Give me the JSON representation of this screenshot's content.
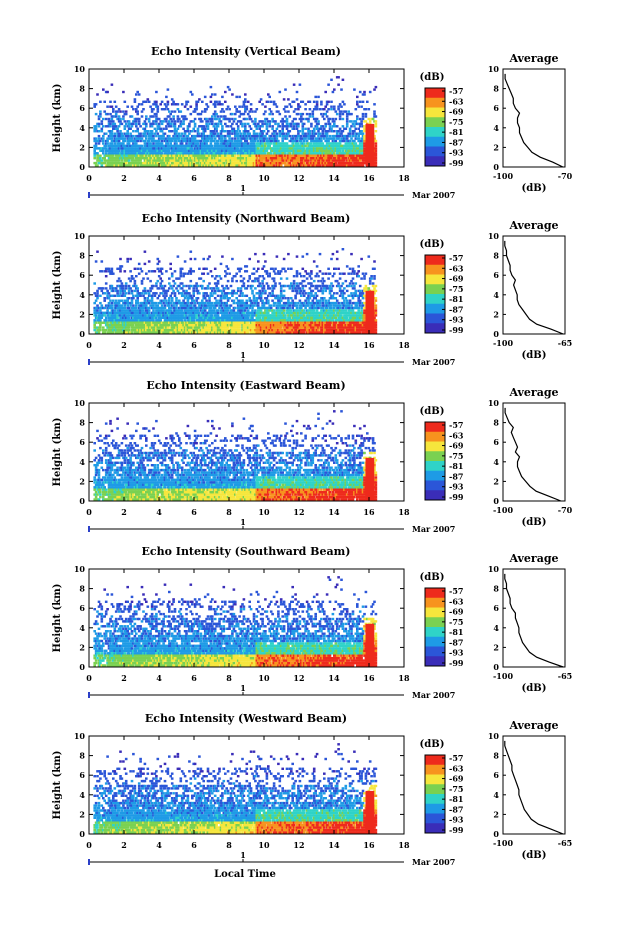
{
  "chart_data": [
    {
      "type": "heatmap",
      "title": "Echo Intensity (Vertical Beam)",
      "ylabel": "Height (km)",
      "ylim": [
        0,
        10
      ],
      "xlim": [
        0,
        18
      ],
      "x_ticks": [
        0,
        2,
        4,
        6,
        8,
        10,
        12,
        14,
        16,
        18
      ],
      "y_ticks": [
        0,
        2,
        4,
        6,
        8,
        10
      ],
      "date_label": "1",
      "date_suffix": "Mar 2007",
      "colorbar": {
        "unit": "(dB)",
        "ticks": [
          -57,
          -63,
          -69,
          -75,
          -81,
          -87,
          -93,
          -99
        ]
      },
      "profile": {
        "title": "Average",
        "xlabel": "(dB)",
        "xlim": [
          -100,
          -70
        ],
        "x_ticks": [
          -100,
          -70
        ],
        "heights": [
          0,
          0.5,
          1,
          1.5,
          2,
          2.5,
          3,
          3.5,
          4,
          4.5,
          5,
          5.5,
          6,
          6.5,
          7,
          7.5,
          8,
          8.5,
          9,
          9.5
        ],
        "values": [
          -71,
          -76,
          -82,
          -86,
          -88,
          -90,
          -91,
          -92,
          -92,
          -93,
          -93,
          -92,
          -94,
          -95,
          -95,
          -96,
          -97,
          -98,
          -99,
          -99
        ]
      }
    },
    {
      "type": "heatmap",
      "title": "Echo Intensity (Northward Beam)",
      "ylabel": "Height (km)",
      "ylim": [
        0,
        10
      ],
      "xlim": [
        0,
        18
      ],
      "x_ticks": [
        0,
        2,
        4,
        6,
        8,
        10,
        12,
        14,
        16,
        18
      ],
      "y_ticks": [
        0,
        2,
        4,
        6,
        8,
        10
      ],
      "date_label": "1",
      "date_suffix": "Mar 2007",
      "colorbar": {
        "unit": "(dB)",
        "ticks": [
          -57,
          -63,
          -69,
          -75,
          -81,
          -87,
          -93,
          -99
        ]
      },
      "profile": {
        "title": "Average",
        "xlabel": "(dB)",
        "xlim": [
          -100,
          -65
        ],
        "x_ticks": [
          -100,
          -65
        ],
        "heights": [
          0,
          0.5,
          1,
          1.5,
          2,
          2.5,
          3,
          3.5,
          4,
          4.5,
          5,
          5.5,
          6,
          6.5,
          7,
          7.5,
          8,
          8.5,
          9,
          9.5
        ],
        "values": [
          -66,
          -73,
          -81,
          -85,
          -87,
          -89,
          -91,
          -92,
          -92,
          -93,
          -94,
          -93,
          -95,
          -96,
          -96,
          -97,
          -98,
          -98,
          -99,
          -99
        ]
      }
    },
    {
      "type": "heatmap",
      "title": "Echo Intensity (Eastward Beam)",
      "ylabel": "Height (km)",
      "ylim": [
        0,
        10
      ],
      "xlim": [
        0,
        18
      ],
      "x_ticks": [
        0,
        2,
        4,
        6,
        8,
        10,
        12,
        14,
        16,
        18
      ],
      "y_ticks": [
        0,
        2,
        4,
        6,
        8,
        10
      ],
      "date_label": "1",
      "date_suffix": "Mar 2007",
      "colorbar": {
        "unit": "(dB)",
        "ticks": [
          -57,
          -63,
          -69,
          -75,
          -81,
          -87,
          -93,
          -99
        ]
      },
      "profile": {
        "title": "Average",
        "xlabel": "(dB)",
        "xlim": [
          -100,
          -70
        ],
        "x_ticks": [
          -100,
          -70
        ],
        "heights": [
          0,
          0.5,
          1,
          1.5,
          2,
          2.5,
          3,
          3.5,
          4,
          4.5,
          5,
          5.5,
          6,
          6.5,
          7,
          7.5,
          8,
          8.5,
          9,
          9.5
        ],
        "values": [
          -72,
          -78,
          -84,
          -87,
          -89,
          -91,
          -92,
          -93,
          -93,
          -92,
          -94,
          -93,
          -94,
          -95,
          -96,
          -95,
          -97,
          -98,
          -99,
          -99
        ]
      }
    },
    {
      "type": "heatmap",
      "title": "Echo Intensity (Southward Beam)",
      "ylabel": "Height (km)",
      "ylim": [
        0,
        10
      ],
      "xlim": [
        0,
        18
      ],
      "x_ticks": [
        0,
        2,
        4,
        6,
        8,
        10,
        12,
        14,
        16,
        18
      ],
      "y_ticks": [
        0,
        2,
        4,
        6,
        8,
        10
      ],
      "date_label": "1",
      "date_suffix": "Mar 2007",
      "colorbar": {
        "unit": "(dB)",
        "ticks": [
          -57,
          -63,
          -69,
          -75,
          -81,
          -87,
          -93,
          -99
        ]
      },
      "profile": {
        "title": "Average",
        "xlabel": "(dB)",
        "xlim": [
          -100,
          -65
        ],
        "x_ticks": [
          -100,
          -65
        ],
        "heights": [
          0,
          0.5,
          1,
          1.5,
          2,
          2.5,
          3,
          3.5,
          4,
          4.5,
          5,
          5.5,
          6,
          6.5,
          7,
          7.5,
          8,
          8.5,
          9,
          9.5
        ],
        "values": [
          -66,
          -74,
          -81,
          -85,
          -87,
          -89,
          -90,
          -91,
          -91,
          -92,
          -93,
          -93,
          -95,
          -96,
          -96,
          -97,
          -98,
          -98,
          -99,
          -99
        ]
      }
    },
    {
      "type": "heatmap",
      "title": "Echo Intensity (Westward Beam)",
      "ylabel": "Height (km)",
      "xlabel": "Local Time",
      "ylim": [
        0,
        10
      ],
      "xlim": [
        0,
        18
      ],
      "x_ticks": [
        0,
        2,
        4,
        6,
        8,
        10,
        12,
        14,
        16,
        18
      ],
      "y_ticks": [
        0,
        2,
        4,
        6,
        8,
        10
      ],
      "date_label": "1",
      "date_suffix": "Mar 2007",
      "colorbar": {
        "unit": "(dB)",
        "ticks": [
          -57,
          -63,
          -69,
          -75,
          -81,
          -87,
          -93,
          -99
        ]
      },
      "profile": {
        "title": "Average",
        "xlabel": "(dB)",
        "xlim": [
          -100,
          -65
        ],
        "x_ticks": [
          -100,
          -65
        ],
        "heights": [
          0,
          0.5,
          1,
          1.5,
          2,
          2.5,
          3,
          3.5,
          4,
          4.5,
          5,
          5.5,
          6,
          6.5,
          7,
          7.5,
          8,
          8.5,
          9,
          9.5
        ],
        "values": [
          -66,
          -73,
          -80,
          -84,
          -86,
          -88,
          -89,
          -90,
          -91,
          -91,
          -92,
          -93,
          -94,
          -95,
          -95,
          -96,
          -97,
          -98,
          -99,
          -99
        ]
      }
    }
  ]
}
